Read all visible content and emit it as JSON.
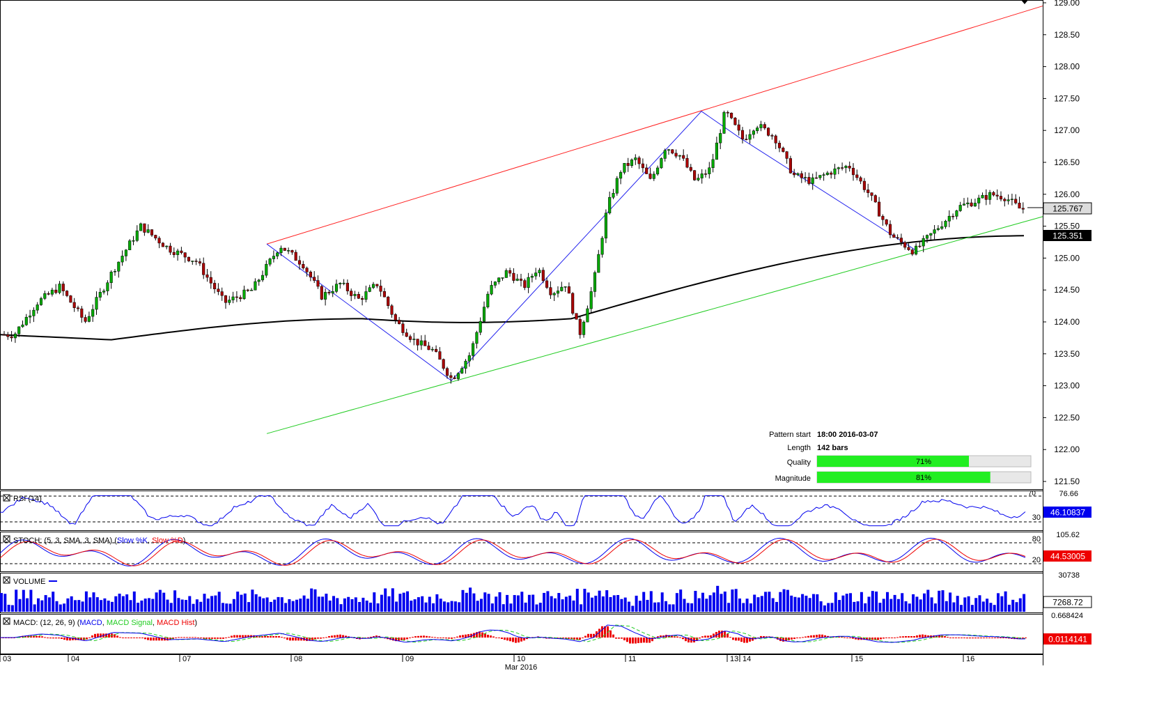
{
  "price_axis": {
    "ticks": [
      "129.00",
      "128.50",
      "128.00",
      "127.50",
      "127.00",
      "126.50",
      "126.00",
      "125.50",
      "125.00",
      "124.50",
      "124.00",
      "123.50",
      "123.00",
      "122.50",
      "122.00",
      "121.50"
    ],
    "current_price_label": "125.767",
    "ma_value_label": "125.351"
  },
  "pattern_info": {
    "start_label": "Pattern start",
    "start_value": "18:00 2016-03-07",
    "length_label": "Length",
    "length_value": "142 bars",
    "quality_label": "Quality",
    "quality_value": "71%",
    "magnitude_label": "Magnitude",
    "magnitude_value": "81%"
  },
  "rsi": {
    "title": "RSI (14)",
    "level_high": "70",
    "level_low": "30",
    "scale_top": "76.66",
    "value_label": "46.10837"
  },
  "stoch": {
    "title_prefix": "STOCH: (5, 3, SMA, 3, SMA) (",
    "slow_k": "Slow %K",
    "sep": ", ",
    "slow_d": "Slow %D",
    "suffix": ")",
    "level_high": "80",
    "level_low": "20",
    "scale_top": "105.62",
    "value_label": "44.53005"
  },
  "volume": {
    "title": "VOLUME",
    "scale_top": "30738",
    "value_label": "7268.72"
  },
  "macd": {
    "title_prefix": "MACD: (12, 26, 9) (",
    "line": "MACD",
    "sep": ", ",
    "signal": "MACD Signal",
    "hist": "MACD Hist",
    "suffix": ")",
    "scale_top": "0.668424",
    "value_label": "0.0114141"
  },
  "time_axis": {
    "day_labels": [
      "03",
      "04",
      "07",
      "08",
      "09",
      "10",
      "11",
      "13",
      "14",
      "15",
      "16"
    ],
    "month_label": "Mar 2016"
  },
  "colors": {
    "bull_candle": "#00aa00",
    "bear_candle": "#aa0000",
    "resistance_line": "#ff2020",
    "support_line": "#22cc22",
    "zigzag_line": "#2222ee",
    "moving_average": "#000000",
    "quality_bar": "#22ee22",
    "rsi_line": "#0000ee",
    "stoch_k": "#0000ee",
    "stoch_d": "#ee0000",
    "volume_bar": "#0000ee",
    "macd_line": "#0000ee",
    "macd_signal": "#22cc22",
    "macd_hist": "#ee0000"
  },
  "chart_data": {
    "type": "candlestick",
    "symbol": "",
    "timeframe": "",
    "x_range": [
      "2016-03-03",
      "2016-03-16"
    ],
    "ylim": [
      121.5,
      129.0
    ],
    "price_path": [
      {
        "d": "2016-03-03",
        "p": 123.8
      },
      {
        "d": "2016-03-03",
        "p": 124.3
      },
      {
        "d": "2016-03-03",
        "p": 124.55
      },
      {
        "d": "2016-03-04",
        "p": 124.0
      },
      {
        "d": "2016-03-04",
        "p": 124.8
      },
      {
        "d": "2016-03-04",
        "p": 125.5
      },
      {
        "d": "2016-03-04",
        "p": 125.15
      },
      {
        "d": "2016-03-07",
        "p": 124.95
      },
      {
        "d": "2016-03-07",
        "p": 124.3
      },
      {
        "d": "2016-03-07",
        "p": 124.5
      },
      {
        "d": "2016-03-07",
        "p": 125.2
      },
      {
        "d": "2016-03-08",
        "p": 124.9
      },
      {
        "d": "2016-03-08",
        "p": 124.4
      },
      {
        "d": "2016-03-08",
        "p": 124.6
      },
      {
        "d": "2016-03-08",
        "p": 124.35
      },
      {
        "d": "2016-03-08",
        "p": 124.6
      },
      {
        "d": "2016-03-08",
        "p": 124.0
      },
      {
        "d": "2016-03-09",
        "p": 123.7
      },
      {
        "d": "2016-03-09",
        "p": 123.55
      },
      {
        "d": "2016-03-09",
        "p": 123.1
      },
      {
        "d": "2016-03-09",
        "p": 123.5
      },
      {
        "d": "2016-03-09",
        "p": 124.5
      },
      {
        "d": "2016-03-09",
        "p": 124.8
      },
      {
        "d": "2016-03-10",
        "p": 124.55
      },
      {
        "d": "2016-03-10",
        "p": 124.85
      },
      {
        "d": "2016-03-10",
        "p": 124.45
      },
      {
        "d": "2016-03-10",
        "p": 124.6
      },
      {
        "d": "2016-03-10",
        "p": 123.8
      },
      {
        "d": "2016-03-10",
        "p": 124.6
      },
      {
        "d": "2016-03-10",
        "p": 125.8
      },
      {
        "d": "2016-03-10",
        "p": 126.4
      },
      {
        "d": "2016-03-11",
        "p": 126.55
      },
      {
        "d": "2016-03-11",
        "p": 126.2
      },
      {
        "d": "2016-03-11",
        "p": 126.75
      },
      {
        "d": "2016-03-11",
        "p": 126.6
      },
      {
        "d": "2016-03-11",
        "p": 126.2
      },
      {
        "d": "2016-03-11",
        "p": 126.4
      },
      {
        "d": "2016-03-11",
        "p": 127.3
      },
      {
        "d": "2016-03-13",
        "p": 126.85
      },
      {
        "d": "2016-03-14",
        "p": 127.1
      },
      {
        "d": "2016-03-14",
        "p": 126.9
      },
      {
        "d": "2016-03-14",
        "p": 126.3
      },
      {
        "d": "2016-03-14",
        "p": 126.2
      },
      {
        "d": "2016-03-14",
        "p": 126.35
      },
      {
        "d": "2016-03-14",
        "p": 126.45
      },
      {
        "d": "2016-03-15",
        "p": 126.0
      },
      {
        "d": "2016-03-15",
        "p": 125.35
      },
      {
        "d": "2016-03-15",
        "p": 125.1
      },
      {
        "d": "2016-03-15",
        "p": 125.45
      },
      {
        "d": "2016-03-15",
        "p": 125.8
      },
      {
        "d": "2016-03-16",
        "p": 125.9
      },
      {
        "d": "2016-03-16",
        "p": 126.0
      },
      {
        "d": "2016-03-16",
        "p": 125.95
      },
      {
        "d": "2016-03-16",
        "p": 125.77
      }
    ],
    "pattern": {
      "type": "ascending channel",
      "pattern_start": "18:00 2016-03-07",
      "length": "142 bars",
      "quality_percent": 71,
      "magnitude_percent": 81,
      "resistance_line": [
        {
          "d": "2016-03-07",
          "p": 125.22
        },
        {
          "d": "2016-03-16",
          "p": 128.95
        }
      ],
      "support_line": [
        {
          "d": "2016-03-07",
          "p": 122.25
        },
        {
          "d": "2016-03-16",
          "p": 125.65
        }
      ],
      "zigzag": [
        {
          "d": "2016-03-07",
          "p": 125.22
        },
        {
          "d": "2016-03-09",
          "p": 123.08
        },
        {
          "d": "2016-03-11",
          "p": 127.3
        },
        {
          "d": "2016-03-14",
          "p": 126.9
        },
        {
          "d": "2016-03-15",
          "p": 125.1
        }
      ]
    },
    "moving_average": {
      "start": 123.8,
      "min": 123.72,
      "mid": 124.05,
      "end": 125.35
    },
    "last_price": 125.767,
    "ma_last": 125.351,
    "indicators": {
      "rsi_14": {
        "last": 46.10837,
        "levels": [
          30,
          70
        ]
      },
      "stoch_5_3_3": {
        "last_k": 44.53005,
        "levels": [
          20,
          80
        ]
      },
      "volume": {
        "last": 7268.72,
        "max": 30738
      },
      "macd_12_26_9": {
        "last_hist": 0.0114141
      }
    }
  }
}
